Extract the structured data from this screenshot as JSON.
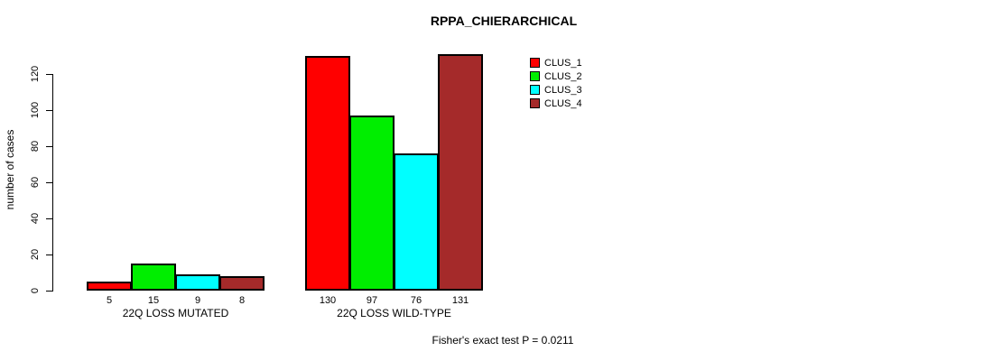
{
  "title": "RPPA_CHIERARCHICAL",
  "ylabel": "number of cases",
  "footnote": "Fisher's exact test P = 0.0211",
  "chart_data": {
    "type": "bar",
    "categories": [
      "22Q LOSS MUTATED",
      "22Q LOSS WILD-TYPE"
    ],
    "series": [
      {
        "name": "CLUS_1",
        "color": "#ff0000",
        "values": [
          5,
          130
        ]
      },
      {
        "name": "CLUS_2",
        "color": "#00ee00",
        "values": [
          15,
          97
        ]
      },
      {
        "name": "CLUS_3",
        "color": "#00ffff",
        "values": [
          9,
          76
        ]
      },
      {
        "name": "CLUS_4",
        "color": "#a52a2a",
        "values": [
          8,
          131
        ]
      }
    ],
    "title": "RPPA_CHIERARCHICAL",
    "xlabel": "",
    "ylabel": "number of cases",
    "ylim": [
      0,
      120
    ],
    "yticks": [
      0,
      20,
      40,
      60,
      80,
      100,
      120
    ],
    "bar_value_labels_shown": true,
    "grid": false,
    "legend_position": "top-right",
    "annotation": "Fisher's exact test P = 0.0211"
  }
}
